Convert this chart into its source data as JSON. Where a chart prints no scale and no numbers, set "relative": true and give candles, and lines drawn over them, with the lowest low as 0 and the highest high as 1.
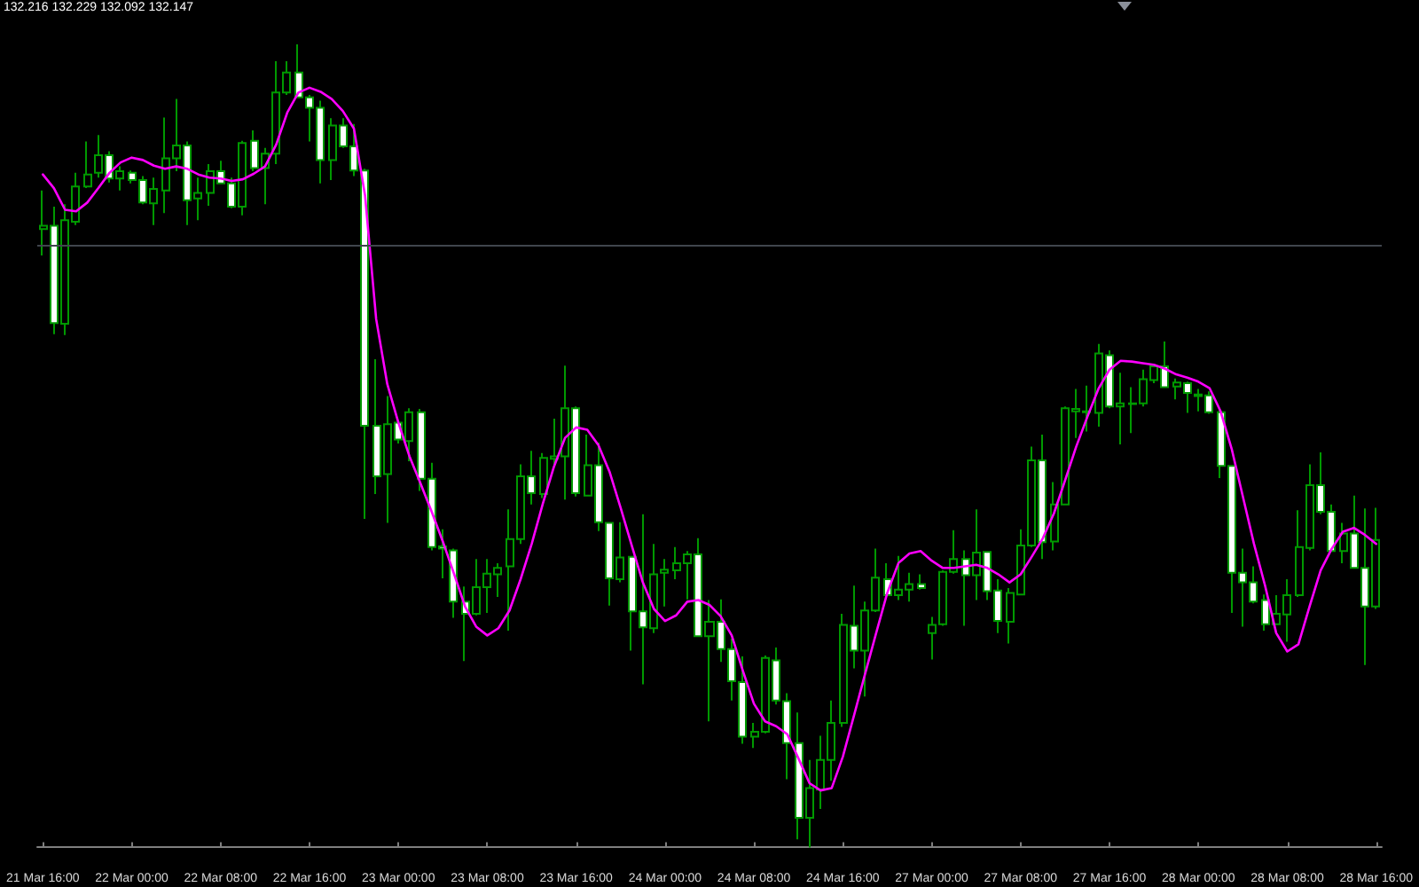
{
  "chart_data": {
    "type": "candlestick",
    "title": "132.216 132.229 132.092 132.147",
    "relative": true,
    "tick_labels": "x",
    "marker": "none",
    "color": "#009900",
    "categories": [
      "21 Mar 16:00",
      null,
      null,
      null,
      null,
      null,
      null,
      null,
      "22 Mar 00:00",
      null,
      null,
      null,
      null,
      null,
      null,
      null,
      "22 Mar 08:00",
      null,
      null,
      null,
      null,
      null,
      null,
      null,
      "22 Mar 16:00",
      null,
      null,
      null,
      null,
      null,
      null,
      null,
      "23 Mar 00:00",
      null,
      null,
      null,
      null,
      null,
      null,
      null,
      "23 Mar 08:00",
      null,
      null,
      null,
      null,
      null,
      null,
      null,
      "23 Mar 16:00",
      null,
      null,
      null,
      null,
      null,
      null,
      null,
      "24 Mar 00:00",
      null,
      null,
      null,
      null,
      null,
      null,
      null,
      "24 Mar 08:00",
      null,
      null,
      null,
      null,
      null,
      null,
      null,
      "24 Mar 16:00",
      null,
      null,
      null,
      null,
      null,
      null,
      null,
      "27 Mar 00:00",
      null,
      null,
      null,
      null,
      null,
      null,
      null,
      "27 Mar 08:00",
      null,
      null,
      null,
      null,
      null,
      null,
      null,
      "27 Mar 16:00",
      null,
      null,
      null,
      null,
      null,
      null,
      null,
      "28 Mar 00:00",
      null,
      null,
      null,
      null,
      null,
      null,
      null,
      "28 Mar 08:00",
      null,
      null,
      null,
      null,
      null,
      null,
      null,
      "28 Mar 16:00"
    ],
    "ohlc": [
      [
        0.77,
        0.818,
        0.737,
        0.774
      ],
      [
        0.774,
        0.798,
        0.639,
        0.653
      ],
      [
        0.652,
        0.801,
        0.638,
        0.781
      ],
      [
        0.779,
        0.84,
        0.775,
        0.823
      ],
      [
        0.823,
        0.879,
        0.821,
        0.838
      ],
      [
        0.84,
        0.887,
        0.834,
        0.862
      ],
      [
        0.862,
        0.867,
        0.828,
        0.833
      ],
      [
        0.833,
        0.848,
        0.818,
        0.842
      ],
      [
        0.84,
        0.843,
        0.827,
        0.831
      ],
      [
        0.831,
        0.836,
        0.801,
        0.803
      ],
      [
        0.802,
        0.834,
        0.775,
        0.82
      ],
      [
        0.818,
        0.909,
        0.79,
        0.858
      ],
      [
        0.858,
        0.932,
        0.842,
        0.874
      ],
      [
        0.874,
        0.879,
        0.775,
        0.806
      ],
      [
        0.808,
        0.834,
        0.781,
        0.815
      ],
      [
        0.815,
        0.851,
        0.799,
        0.842
      ],
      [
        0.842,
        0.855,
        0.826,
        0.827
      ],
      [
        0.827,
        0.834,
        0.796,
        0.798
      ],
      [
        0.798,
        0.88,
        0.787,
        0.877
      ],
      [
        0.88,
        0.893,
        0.842,
        0.846
      ],
      [
        0.846,
        0.871,
        0.801,
        0.864
      ],
      [
        0.864,
        0.979,
        0.851,
        0.94
      ],
      [
        0.94,
        0.979,
        0.937,
        0.965
      ],
      [
        0.965,
        1.0,
        0.933,
        0.934
      ],
      [
        0.934,
        0.937,
        0.879,
        0.921
      ],
      [
        0.921,
        0.93,
        0.827,
        0.856
      ],
      [
        0.856,
        0.908,
        0.831,
        0.899
      ],
      [
        0.899,
        0.908,
        0.871,
        0.873
      ],
      [
        0.873,
        0.901,
        0.836,
        0.843
      ],
      [
        0.843,
        0.845,
        0.409,
        0.525
      ],
      [
        0.525,
        0.608,
        0.44,
        0.462
      ],
      [
        0.465,
        0.562,
        0.404,
        0.527
      ],
      [
        0.529,
        0.531,
        0.503,
        0.508
      ],
      [
        0.506,
        0.547,
        0.481,
        0.542
      ],
      [
        0.542,
        0.546,
        0.444,
        0.459
      ],
      [
        0.459,
        0.479,
        0.37,
        0.374
      ],
      [
        0.375,
        0.396,
        0.335,
        0.372
      ],
      [
        0.37,
        0.372,
        0.286,
        0.306
      ],
      [
        0.306,
        0.325,
        0.232,
        0.291
      ],
      [
        0.291,
        0.359,
        0.289,
        0.324
      ],
      [
        0.324,
        0.359,
        0.292,
        0.341
      ],
      [
        0.34,
        0.354,
        0.312,
        0.348
      ],
      [
        0.35,
        0.421,
        0.27,
        0.384
      ],
      [
        0.384,
        0.477,
        0.378,
        0.462
      ],
      [
        0.462,
        0.494,
        0.427,
        0.441
      ],
      [
        0.44,
        0.491,
        0.435,
        0.485
      ],
      [
        0.484,
        0.534,
        0.474,
        0.487
      ],
      [
        0.487,
        0.6,
        0.433,
        0.547
      ],
      [
        0.547,
        0.549,
        0.437,
        0.441
      ],
      [
        0.438,
        0.514,
        0.437,
        0.476
      ],
      [
        0.476,
        0.504,
        0.394,
        0.405
      ],
      [
        0.404,
        0.405,
        0.301,
        0.335
      ],
      [
        0.334,
        0.405,
        0.33,
        0.361
      ],
      [
        0.362,
        0.363,
        0.245,
        0.294
      ],
      [
        0.294,
        0.415,
        0.203,
        0.274
      ],
      [
        0.273,
        0.378,
        0.267,
        0.34
      ],
      [
        0.342,
        0.359,
        0.3,
        0.346
      ],
      [
        0.345,
        0.374,
        0.334,
        0.354
      ],
      [
        0.354,
        0.369,
        0.309,
        0.365
      ],
      [
        0.365,
        0.385,
        0.262,
        0.263
      ],
      [
        0.263,
        0.308,
        0.157,
        0.281
      ],
      [
        0.281,
        0.309,
        0.231,
        0.247
      ],
      [
        0.247,
        0.26,
        0.183,
        0.207
      ],
      [
        0.206,
        0.238,
        0.129,
        0.138
      ],
      [
        0.138,
        0.155,
        0.124,
        0.144
      ],
      [
        0.144,
        0.239,
        0.142,
        0.236
      ],
      [
        0.233,
        0.249,
        0.178,
        0.183
      ],
      [
        0.182,
        0.192,
        0.085,
        0.13
      ],
      [
        0.13,
        0.168,
        0.01,
        0.037
      ],
      [
        0.037,
        0.109,
        0.0,
        0.074
      ],
      [
        0.072,
        0.139,
        0.048,
        0.109
      ],
      [
        0.109,
        0.183,
        0.083,
        0.155
      ],
      [
        0.155,
        0.291,
        0.15,
        0.277
      ],
      [
        0.276,
        0.326,
        0.223,
        0.245
      ],
      [
        0.245,
        0.306,
        0.188,
        0.295
      ],
      [
        0.295,
        0.372,
        0.293,
        0.336
      ],
      [
        0.334,
        0.354,
        0.31,
        0.314
      ],
      [
        0.314,
        0.363,
        0.308,
        0.321
      ],
      [
        0.321,
        0.342,
        0.306,
        0.328
      ],
      [
        0.328,
        0.34,
        0.321,
        0.323
      ],
      [
        0.267,
        0.287,
        0.234,
        0.277
      ],
      [
        0.278,
        0.345,
        0.276,
        0.343
      ],
      [
        0.343,
        0.395,
        0.341,
        0.359
      ],
      [
        0.359,
        0.37,
        0.276,
        0.339
      ],
      [
        0.339,
        0.421,
        0.308,
        0.367
      ],
      [
        0.368,
        0.369,
        0.308,
        0.319
      ],
      [
        0.32,
        0.334,
        0.267,
        0.282
      ],
      [
        0.281,
        0.323,
        0.254,
        0.317
      ],
      [
        0.315,
        0.396,
        0.314,
        0.376
      ],
      [
        0.376,
        0.499,
        0.374,
        0.482
      ],
      [
        0.482,
        0.514,
        0.359,
        0.38
      ],
      [
        0.381,
        0.455,
        0.37,
        0.427
      ],
      [
        0.427,
        0.549,
        0.426,
        0.547
      ],
      [
        0.543,
        0.571,
        0.51,
        0.546
      ],
      [
        0.543,
        0.575,
        0.518,
        0.542
      ],
      [
        0.541,
        0.627,
        0.524,
        0.615
      ],
      [
        0.613,
        0.619,
        0.547,
        0.549
      ],
      [
        0.549,
        0.591,
        0.502,
        0.553
      ],
      [
        0.552,
        0.573,
        0.516,
        0.553
      ],
      [
        0.553,
        0.595,
        0.549,
        0.583
      ],
      [
        0.582,
        0.602,
        0.578,
        0.599
      ],
      [
        0.599,
        0.63,
        0.572,
        0.573
      ],
      [
        0.574,
        0.584,
        0.558,
        0.579
      ],
      [
        0.578,
        0.58,
        0.541,
        0.566
      ],
      [
        0.562,
        0.571,
        0.543,
        0.564
      ],
      [
        0.563,
        0.568,
        0.54,
        0.542
      ],
      [
        0.542,
        0.547,
        0.46,
        0.475
      ],
      [
        0.475,
        0.476,
        0.292,
        0.342
      ],
      [
        0.342,
        0.372,
        0.275,
        0.33
      ],
      [
        0.33,
        0.35,
        0.304,
        0.306
      ],
      [
        0.308,
        0.315,
        0.27,
        0.278
      ],
      [
        0.278,
        0.314,
        0.277,
        0.291
      ],
      [
        0.29,
        0.334,
        0.256,
        0.314
      ],
      [
        0.314,
        0.42,
        0.312,
        0.374
      ],
      [
        0.373,
        0.477,
        0.37,
        0.451
      ],
      [
        0.451,
        0.492,
        0.415,
        0.418
      ],
      [
        0.418,
        0.427,
        0.368,
        0.369
      ],
      [
        0.369,
        0.404,
        0.354,
        0.391
      ],
      [
        0.391,
        0.438,
        0.347,
        0.348
      ],
      [
        0.348,
        0.422,
        0.227,
        0.3
      ],
      [
        0.3,
        0.423,
        0.297,
        0.383
      ]
    ],
    "colors": [
      "#000000",
      "#ffffff",
      "#000000",
      "#000000",
      "#000000",
      "#000000",
      "#ffffff",
      "#000000",
      "#ffffff",
      "#ffffff",
      "#000000",
      "#000000",
      "#000000",
      "#ffffff",
      "#000000",
      "#000000",
      "#ffffff",
      "#ffffff",
      "#000000",
      "#ffffff",
      "#000000",
      "#000000",
      "#000000",
      "#ffffff",
      "#ffffff",
      "#ffffff",
      "#000000",
      "#ffffff",
      "#ffffff",
      "#ffffff",
      "#ffffff",
      "#000000",
      "#ffffff",
      "#000000",
      "#ffffff",
      "#ffffff",
      "#ffffff",
      "#ffffff",
      "#ffffff",
      "#000000",
      "#000000",
      "#000000",
      "#000000",
      "#000000",
      "#ffffff",
      "#000000",
      "#000000",
      "#000000",
      "#ffffff",
      "#000000",
      "#ffffff",
      "#ffffff",
      "#000000",
      "#ffffff",
      "#ffffff",
      "#000000",
      "#000000",
      "#000000",
      "#000000",
      "#ffffff",
      "#000000",
      "#ffffff",
      "#ffffff",
      "#ffffff",
      "#000000",
      "#000000",
      "#ffffff",
      "#ffffff",
      "#ffffff",
      "#000000",
      "#000000",
      "#000000",
      "#000000",
      "#ffffff",
      "#000000",
      "#000000",
      "#ffffff",
      "#000000",
      "#000000",
      "#ffffff",
      "#000000",
      "#000000",
      "#000000",
      "#ffffff",
      "#000000",
      "#ffffff",
      "#ffffff",
      "#000000",
      "#000000",
      "#000000",
      "#ffffff",
      "#000000",
      "#000000",
      "#000000",
      "#ffffff",
      "#000000",
      "#ffffff",
      "#000000",
      "#000000",
      "#000000",
      "#000000",
      "#ffffff",
      "#000000",
      "#ffffff",
      "#000000",
      "#ffffff",
      "#ffffff",
      "#ffffff",
      "#ffffff",
      "#ffffff",
      "#ffffff",
      "#000000",
      "#000000",
      "#000000",
      "#000000",
      "#ffffff",
      "#ffffff",
      "#000000",
      "#ffffff",
      "#ffffff",
      "#000000"
    ],
    "series": [
      {
        "type": "line",
        "color": "#ff00ff",
        "values": [
          0.838,
          0.821,
          0.794,
          0.792,
          0.803,
          0.821,
          0.84,
          0.853,
          0.859,
          0.856,
          0.849,
          0.845,
          0.848,
          0.845,
          0.838,
          0.834,
          0.833,
          0.83,
          0.832,
          0.839,
          0.848,
          0.875,
          0.915,
          0.94,
          0.946,
          0.941,
          0.932,
          0.917,
          0.895,
          0.812,
          0.658,
          0.577,
          0.529,
          0.487,
          0.453,
          0.418,
          0.381,
          0.341,
          0.3,
          0.275,
          0.264,
          0.273,
          0.295,
          0.334,
          0.378,
          0.428,
          0.474,
          0.51,
          0.523,
          0.52,
          0.501,
          0.468,
          0.423,
          0.376,
          0.33,
          0.297,
          0.282,
          0.289,
          0.306,
          0.308,
          0.302,
          0.288,
          0.264,
          0.22,
          0.179,
          0.157,
          0.151,
          0.141,
          0.111,
          0.08,
          0.071,
          0.074,
          0.113,
          0.164,
          0.216,
          0.267,
          0.317,
          0.354,
          0.366,
          0.369,
          0.357,
          0.348,
          0.348,
          0.35,
          0.352,
          0.348,
          0.34,
          0.33,
          0.34,
          0.362,
          0.385,
          0.416,
          0.457,
          0.499,
          0.536,
          0.571,
          0.595,
          0.606,
          0.605,
          0.603,
          0.601,
          0.596,
          0.589,
          0.585,
          0.58,
          0.572,
          0.543,
          0.496,
          0.437,
          0.378,
          0.326,
          0.267,
          0.244,
          0.253,
          0.3,
          0.345,
          0.372,
          0.393,
          0.398,
          0.389,
          0.378
        ]
      }
    ],
    "ref_lines": [
      {
        "axis": "y",
        "value": 0.746,
        "color": "#40454d"
      }
    ]
  }
}
